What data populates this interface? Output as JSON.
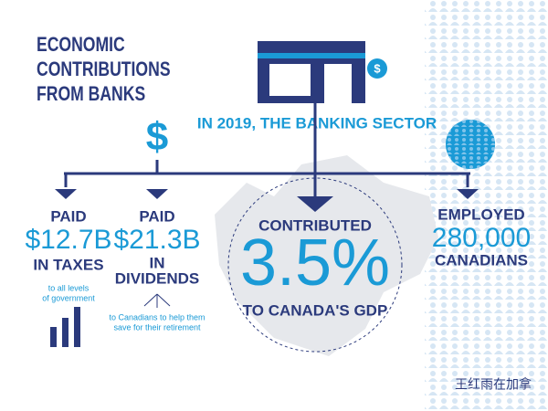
{
  "title": [
    "ECONOMIC",
    "CONTRIBUTIONS",
    "FROM BANKS"
  ],
  "icon_symbol": "$",
  "header": "IN 2019, THE BANKING SECTOR",
  "items": [
    {
      "lines": [
        "PAID",
        "$12.7B",
        "IN TAXES"
      ],
      "note": [
        "to all levels",
        "of government"
      ]
    },
    {
      "lines": [
        "PAID",
        "$21.3B",
        "IN",
        "DIVIDENDS"
      ],
      "note": [
        "to Canadians to help them",
        "save for their retirement"
      ]
    },
    {
      "lines": [
        "CONTRIBUTED",
        "3.5%",
        "TO CANADA'S GDP"
      ]
    },
    {
      "lines": [
        "EMPLOYED",
        "280,000",
        "CANADIANS"
      ]
    }
  ],
  "watermark": "王红雨在加拿"
}
